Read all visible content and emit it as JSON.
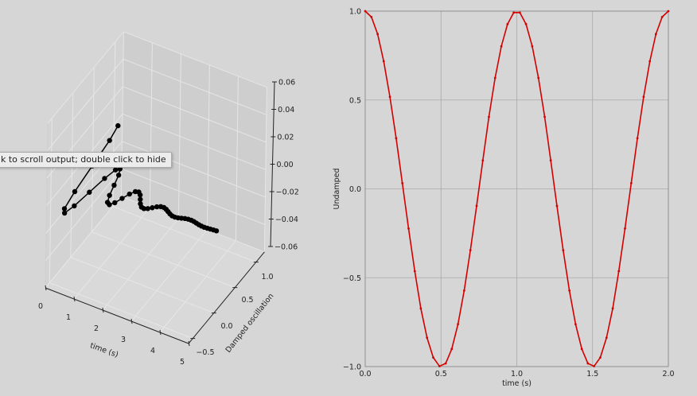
{
  "tooltip": {
    "text": "k to scroll output; double click to hide"
  },
  "colors": {
    "background": "#d6d6d6",
    "line_2d": "#d40000",
    "line_3d": "#000000",
    "grid": "#a9a9a9"
  },
  "chart_data": [
    {
      "type": "line",
      "projection": "3d",
      "marker": "circle",
      "xlabel": "time (s)",
      "ylabel": "Damped oscillation",
      "zlabel": "",
      "xticks": [
        "0",
        "1",
        "2",
        "3",
        "4",
        "5"
      ],
      "yticks": [
        "−0.5",
        "0.0",
        "0.5",
        "1.0"
      ],
      "zticks": [
        "0.06",
        "0.04",
        "0.02",
        "0.00",
        "−0.02",
        "−0.04",
        "−0.06"
      ],
      "xlim": [
        0,
        5
      ],
      "ylim": [
        -0.6,
        1.2
      ],
      "zlim": [
        -0.06,
        0.06
      ],
      "grid": true,
      "x": [
        0,
        0.1,
        0.2,
        0.3,
        0.4,
        0.5,
        0.6,
        0.7,
        0.8,
        0.9,
        1.0,
        1.1,
        1.2,
        1.3,
        1.4,
        1.5,
        1.6,
        1.7,
        1.8,
        1.9,
        2.0,
        2.1,
        2.2,
        2.3,
        2.4,
        2.5,
        2.6,
        2.7,
        2.8,
        2.9,
        3.0,
        3.1,
        3.2,
        3.3,
        3.4,
        3.5,
        3.6,
        3.7,
        3.8,
        3.9,
        4.0,
        4.1,
        4.2,
        4.3,
        4.4,
        4.5,
        4.6,
        4.7,
        4.8,
        4.9
      ],
      "y": [
        1,
        0.732,
        0.253,
        -0.229,
        -0.542,
        -0.607,
        -0.444,
        -0.154,
        0.139,
        0.329,
        0.368,
        0.269,
        0.093,
        -0.084,
        -0.2,
        -0.223,
        -0.163,
        -0.057,
        0.051,
        0.121,
        0.135,
        0.099,
        0.034,
        -0.031,
        -0.074,
        -0.082,
        -0.06,
        -0.021,
        0.019,
        0.045,
        0.05,
        0.036,
        0.013,
        -0.011,
        -0.027,
        -0.03,
        -0.022,
        -0.008,
        0.007,
        0.016,
        0.018,
        0.014,
        0.005,
        -0.004,
        -0.01,
        -0.011,
        -0.008,
        -0.003,
        0.002,
        0.006
      ],
      "z": 0
    },
    {
      "type": "line",
      "marker": "dot",
      "xlabel": "time (s)",
      "ylabel": "Undamped",
      "xticks": [
        "0.0",
        "0.5",
        "1.0",
        "1.5",
        "2.0"
      ],
      "yticks": [
        "−1.0",
        "−0.5",
        "0.0",
        "0.5",
        "1.0"
      ],
      "xlim": [
        0,
        2
      ],
      "ylim": [
        -1,
        1
      ],
      "grid": true,
      "x": [
        0,
        0.041,
        0.082,
        0.122,
        0.163,
        0.204,
        0.245,
        0.286,
        0.327,
        0.367,
        0.408,
        0.449,
        0.49,
        0.531,
        0.571,
        0.612,
        0.653,
        0.694,
        0.735,
        0.776,
        0.816,
        0.857,
        0.898,
        0.939,
        0.98,
        1.02,
        1.061,
        1.102,
        1.143,
        1.184,
        1.224,
        1.265,
        1.306,
        1.347,
        1.388,
        1.429,
        1.469,
        1.51,
        1.551,
        1.592,
        1.633,
        1.673,
        1.714,
        1.755,
        1.796,
        1.837,
        1.878,
        1.918,
        1.959,
        2.0
      ],
      "y": [
        1,
        0.967,
        0.871,
        0.718,
        0.518,
        0.285,
        0.032,
        -0.223,
        -0.463,
        -0.673,
        -0.838,
        -0.949,
        -0.998,
        -0.982,
        -0.901,
        -0.762,
        -0.572,
        -0.345,
        -0.096,
        0.16,
        0.405,
        0.624,
        0.802,
        0.927,
        0.992,
        0.992,
        0.927,
        0.802,
        0.624,
        0.405,
        0.16,
        -0.096,
        -0.345,
        -0.572,
        -0.762,
        -0.901,
        -0.982,
        -0.998,
        -0.949,
        -0.838,
        -0.673,
        -0.463,
        -0.223,
        0.032,
        0.285,
        0.518,
        0.718,
        0.871,
        0.967,
        1
      ]
    }
  ]
}
